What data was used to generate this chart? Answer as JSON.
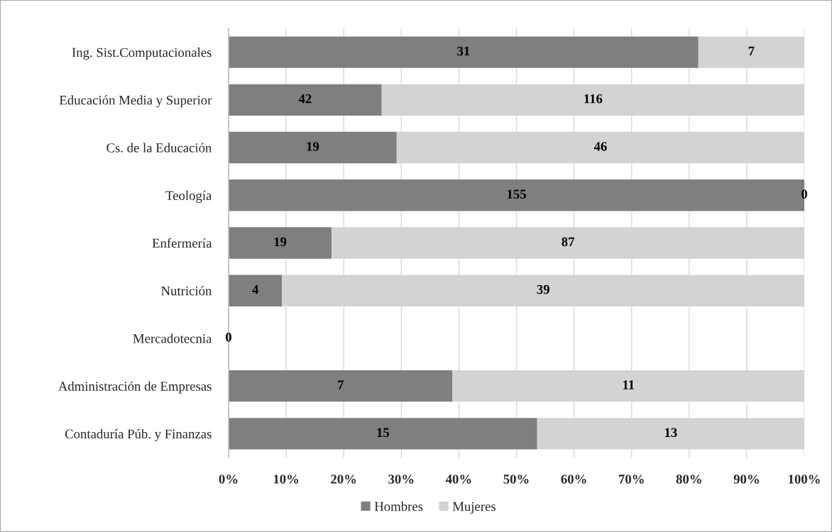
{
  "chart_data": {
    "type": "bar",
    "orientation": "horizontal",
    "stacked": true,
    "categories": [
      "Ing. Sist.Computacionales",
      "Educación Media y Superior",
      "Cs. de la Educación",
      "Teología",
      "Enfermería",
      "Nutrición",
      "Mercadotecnia",
      "Administración de Empresas",
      "Contaduría Púb. y Finanzas"
    ],
    "series": [
      {
        "name": "Hombres",
        "color": "#7f7f7f",
        "values": [
          81.6,
          26.6,
          29.2,
          100,
          17.9,
          9.3,
          0,
          38.9,
          53.6
        ]
      },
      {
        "name": "Mujeres",
        "color": "#d3d3d3",
        "values": [
          18.4,
          73.4,
          70.8,
          0,
          82.1,
          90.7,
          0,
          61.1,
          46.4
        ]
      }
    ],
    "annotations": [
      "31",
      "7",
      "42",
      "116",
      "19",
      "46",
      "155",
      "0",
      "19",
      "87",
      "4",
      "39",
      "0",
      "7",
      "11",
      "15",
      "13"
    ],
    "xlim": [
      0,
      100
    ],
    "xticks": [
      {
        "value": 0,
        "label": "0%"
      },
      {
        "value": 10,
        "label": "10%"
      },
      {
        "value": 20,
        "label": "20%"
      },
      {
        "value": 30,
        "label": "30%"
      },
      {
        "value": 40,
        "label": "40%"
      },
      {
        "value": 50,
        "label": "50%"
      },
      {
        "value": 60,
        "label": "60%"
      },
      {
        "value": 70,
        "label": "70%"
      },
      {
        "value": 80,
        "label": "80%"
      },
      {
        "value": 90,
        "label": "90%"
      },
      {
        "value": 100,
        "label": "100%"
      }
    ],
    "grid": "x",
    "legend": "bottom"
  }
}
